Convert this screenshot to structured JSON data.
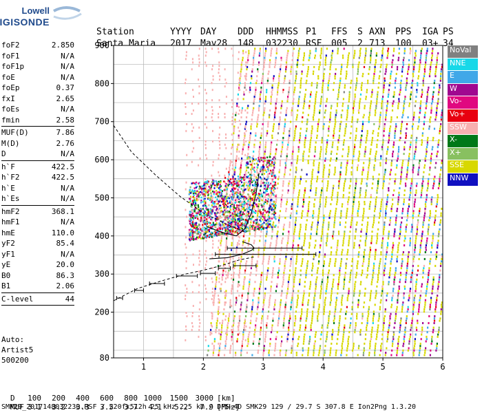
{
  "logo": {
    "line1": "Lowell",
    "line2": "DIGISONDE"
  },
  "header": {
    "labels": [
      "Station",
      "YYYY",
      "DAY",
      "DDD",
      "HHMMSS",
      "P1",
      "FFS",
      "S",
      "AXN",
      "PPS",
      "IGA",
      "PS"
    ],
    "values": [
      "Santa Maria",
      "2017",
      "May28",
      "148",
      "032230",
      "RSF",
      "005",
      "2",
      "713",
      "100",
      "03+",
      "34"
    ]
  },
  "parameters": {
    "group1": [
      {
        "key": "foF2",
        "value": "2.850"
      },
      {
        "key": "foF1",
        "value": "N/A"
      },
      {
        "key": "foF1p",
        "value": "N/A"
      },
      {
        "key": "foE",
        "value": "N/A"
      },
      {
        "key": "foEp",
        "value": "0.37"
      },
      {
        "key": "fxI",
        "value": "2.65"
      },
      {
        "key": "foEs",
        "value": "N/A"
      },
      {
        "key": "fmin",
        "value": "2.58"
      }
    ],
    "group2": [
      {
        "key": "MUF(D)",
        "value": "7.86"
      },
      {
        "key": "M(D)",
        "value": "2.76"
      },
      {
        "key": "D",
        "value": "N/A"
      }
    ],
    "group3": [
      {
        "key": "h`F",
        "value": "422.5"
      },
      {
        "key": "h`F2",
        "value": "422.5"
      },
      {
        "key": "h`E",
        "value": "N/A"
      },
      {
        "key": "h`Es",
        "value": "N/A"
      }
    ],
    "group4": [
      {
        "key": "hmF2",
        "value": "368.1"
      },
      {
        "key": "hmF1",
        "value": "N/A"
      },
      {
        "key": "hmE",
        "value": "110.0"
      },
      {
        "key": "yF2",
        "value": "85.4"
      },
      {
        "key": "yF1",
        "value": "N/A"
      },
      {
        "key": "yE",
        "value": "20.0"
      },
      {
        "key": "B0",
        "value": "86.3"
      },
      {
        "key": "B1",
        "value": "2.06"
      }
    ],
    "group5": [
      {
        "key": "C-level",
        "value": "44"
      }
    ]
  },
  "autoscaling": {
    "line1": "Auto:",
    "line2": "Artist5",
    "line3": "500200"
  },
  "plot": {
    "y_ticks": [
      "900",
      "800",
      "700",
      "600",
      "500",
      "400",
      "300",
      "200",
      "80"
    ],
    "x_ticks": [
      "1",
      "2",
      "3",
      "4",
      "5",
      "6"
    ],
    "y_range_km": [
      80,
      900
    ],
    "x_range_mhz": [
      0.5,
      6.0
    ]
  },
  "legend": [
    {
      "label": "NoVal",
      "color": "#808080"
    },
    {
      "label": "NNE",
      "color": "#18d8e8"
    },
    {
      "label": "E",
      "color": "#40a8e8"
    },
    {
      "label": "W",
      "color": "#a00890"
    },
    {
      "label": "Vo-",
      "color": "#e00880"
    },
    {
      "label": "Vo+",
      "color": "#e80010"
    },
    {
      "label": "SSW",
      "color": "#f8b0b0"
    },
    {
      "label": "X-",
      "color": "#007818"
    },
    {
      "label": "X+",
      "color": "#88c060"
    },
    {
      "label": "SSE",
      "color": "#d8d800"
    },
    {
      "label": "NNW",
      "color": "#1010c0"
    }
  ],
  "muf_table": {
    "d_label": "D",
    "d_values": [
      "100",
      "200",
      "400",
      "600",
      "800",
      "1000",
      "1500",
      "3000"
    ],
    "d_unit": "[km]",
    "muf_label": "MUF",
    "muf_values": [
      "3.1",
      "3.2",
      "3.3",
      "3.5",
      "3.7",
      "4.1",
      "5.2",
      "7.9"
    ],
    "muf_unit": "[MHz]"
  },
  "footer": "SMK29_2017148032230.RSF / 220fx512h 25 kHz 2.5 km / DPS-4D SMK29 129 / 29.7 S 307.8 E Ion2Png 1.3.20"
}
